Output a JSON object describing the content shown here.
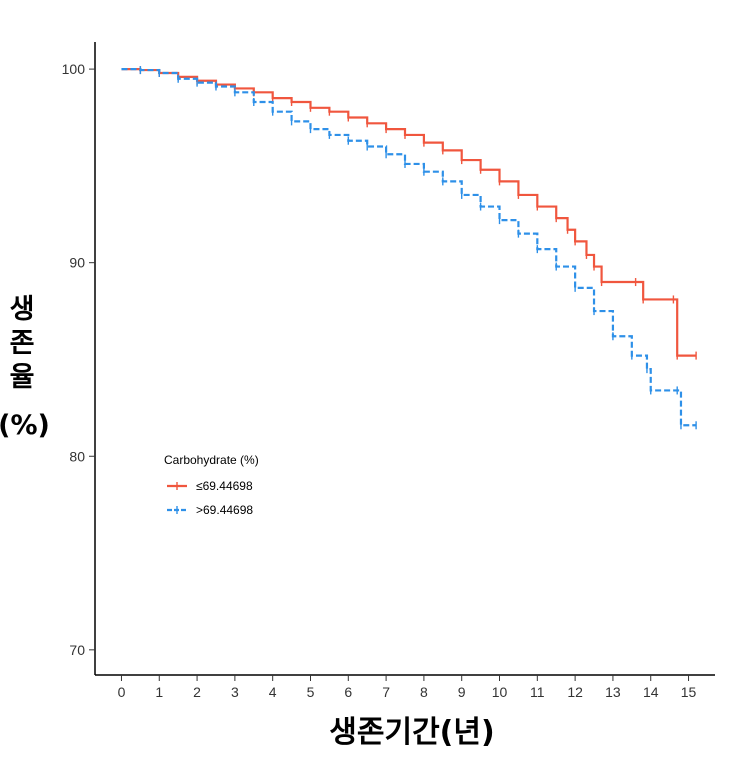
{
  "chart_data": {
    "type": "line",
    "subtype": "kaplan-meier step",
    "xlabel": "생존기간(년)",
    "ylabel_lines": [
      "생",
      "존",
      "율",
      "(%)"
    ],
    "xlim": [
      -0.7,
      15.7
    ],
    "ylim": [
      68.7,
      101.4
    ],
    "xticks": [
      0,
      1,
      2,
      3,
      4,
      5,
      6,
      7,
      8,
      9,
      10,
      11,
      12,
      13,
      14,
      15
    ],
    "yticks": [
      70,
      80,
      90,
      100
    ],
    "grid": false,
    "legend": {
      "title": "Carbohydrate (%)",
      "placement": "middle-left"
    },
    "series": [
      {
        "name": "≤69.44698",
        "color": "#f0563e",
        "line_style": "solid",
        "censor_mark": "+",
        "x": [
          0,
          0.5,
          1,
          1.5,
          2,
          2.5,
          3,
          3.5,
          4,
          4.5,
          5,
          5.5,
          6,
          6.5,
          7,
          7.5,
          8,
          8.5,
          9,
          9.5,
          10,
          10.5,
          11,
          11.5,
          11.8,
          12,
          12.3,
          12.5,
          12.7,
          13.6,
          13.8,
          14.6,
          14.7,
          15.2
        ],
        "y": [
          100,
          99.95,
          99.8,
          99.6,
          99.4,
          99.2,
          99.0,
          98.8,
          98.5,
          98.3,
          98.0,
          97.8,
          97.5,
          97.2,
          96.9,
          96.6,
          96.2,
          95.8,
          95.3,
          94.8,
          94.2,
          93.5,
          92.9,
          92.3,
          91.7,
          91.1,
          90.4,
          89.8,
          89.0,
          89.0,
          88.1,
          88.1,
          85.2,
          85.2
        ]
      },
      {
        "name": ">69.44698",
        "color": "#2e90e8",
        "line_style": "dashed",
        "censor_mark": "+",
        "x": [
          0,
          0.5,
          1,
          1.5,
          2,
          2.5,
          3,
          3.5,
          4,
          4.5,
          5,
          5.5,
          6,
          6.5,
          7,
          7.5,
          8,
          8.5,
          9,
          9.5,
          10,
          10.5,
          11,
          11.5,
          12,
          12.5,
          13,
          13.5,
          13.9,
          14,
          14.7,
          14.8,
          15.2
        ],
        "y": [
          100,
          99.95,
          99.8,
          99.5,
          99.3,
          99.1,
          98.8,
          98.3,
          97.8,
          97.3,
          96.9,
          96.6,
          96.3,
          96.0,
          95.6,
          95.1,
          94.7,
          94.2,
          93.5,
          92.9,
          92.2,
          91.5,
          90.7,
          89.8,
          88.7,
          87.5,
          86.2,
          85.2,
          84.5,
          83.4,
          83.4,
          81.6,
          81.6
        ]
      }
    ]
  }
}
